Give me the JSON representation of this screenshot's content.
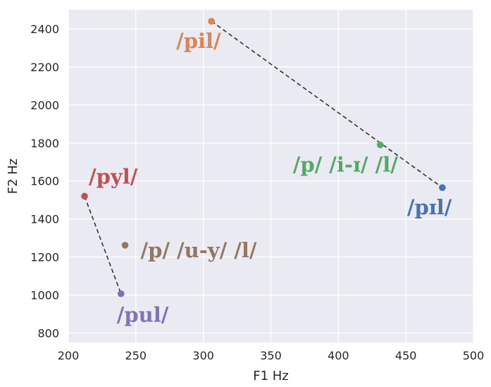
{
  "chart_data": {
    "type": "scatter",
    "xlabel": "F1 Hz",
    "ylabel": "F2 Hz",
    "xlim": [
      200,
      500
    ],
    "ylim": [
      750,
      2500
    ],
    "xticks": [
      200,
      250,
      300,
      350,
      400,
      450,
      500
    ],
    "yticks": [
      800,
      1000,
      1200,
      1400,
      1600,
      1800,
      2000,
      2200,
      2400
    ],
    "grid": true,
    "background": "#eaeaf2",
    "points": [
      {
        "label": "/pil/",
        "x": 306,
        "y": 2440,
        "color": "#dd8452",
        "label_anchor": "below-left"
      },
      {
        "label": "/p/ /i-ɪ/ /l/",
        "x": 431,
        "y": 1790,
        "color": "#55a868",
        "label_anchor": "below-left"
      },
      {
        "label": "/pɪl/",
        "x": 477,
        "y": 1565,
        "color": "#4c72b0",
        "label_anchor": "below-left"
      },
      {
        "label": "/pyl/",
        "x": 212,
        "y": 1520,
        "color": "#c44e52",
        "label_anchor": "above-right"
      },
      {
        "label": "/p/ /u-y/ /l/",
        "x": 242,
        "y": 1262,
        "color": "#937860",
        "label_anchor": "right"
      },
      {
        "label": "/pul/",
        "x": 239,
        "y": 1007,
        "color": "#8172b3",
        "label_anchor": "below"
      }
    ],
    "dashed_lines": [
      {
        "from": "/pil/",
        "to": "/pɪl/",
        "color": "#333333"
      },
      {
        "from": "/pyl/",
        "to": "/pul/",
        "color": "#333333"
      }
    ]
  }
}
